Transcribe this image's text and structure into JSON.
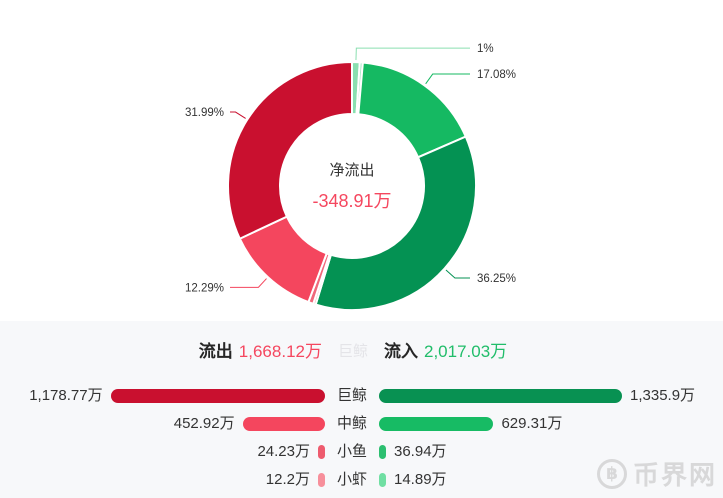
{
  "chart_data": [
    {
      "type": "pie",
      "shape": "donut",
      "center_label": {
        "title": "净流出",
        "value": "-348.91万",
        "value_color": "#f5475f"
      },
      "unit": "万",
      "legend_position": "none",
      "segments": [
        {
          "name": "小鱼-流入",
          "pct": 1.0,
          "label": "1%",
          "color": "#8adfb0",
          "labeled": true
        },
        {
          "name": "小虾-流入",
          "pct": 0.4,
          "label": "",
          "color": "#a6e8c6",
          "labeled": false
        },
        {
          "name": "中鲸-流入",
          "pct": 17.08,
          "label": "17.08%",
          "color": "#15b962",
          "labeled": true
        },
        {
          "name": "巨鲸-流入",
          "pct": 36.25,
          "label": "36.25%",
          "color": "#049253",
          "labeled": true
        },
        {
          "name": "小虾-流出",
          "pct": 0.33,
          "label": "",
          "color": "#f9a2ad",
          "labeled": false
        },
        {
          "name": "小鱼-流出",
          "pct": 0.66,
          "label": "",
          "color": "#f0677a",
          "labeled": false
        },
        {
          "name": "中鲸-流出",
          "pct": 12.29,
          "label": "12.29%",
          "color": "#f4465e",
          "labeled": true
        },
        {
          "name": "巨鲸-流出",
          "pct": 31.99,
          "label": "31.99%",
          "color": "#c9102f",
          "labeled": true
        }
      ]
    },
    {
      "type": "bar",
      "orientation": "horizontal-mirrored",
      "categories": [
        "巨鲸",
        "中鲸",
        "小鱼",
        "小虾"
      ],
      "max_value": 1335.9,
      "series": [
        {
          "name": "流出",
          "values": [
            1178.77,
            452.92,
            24.23,
            12.2
          ],
          "labels": [
            "1,178.77万",
            "452.92万",
            "24.23万",
            "12.2万"
          ],
          "colors": [
            "#c9102f",
            "#f4465e",
            "#ee5b6e",
            "#f78f9b"
          ]
        },
        {
          "name": "流入",
          "values": [
            1335.9,
            629.31,
            36.94,
            14.89
          ],
          "labels": [
            "1,335.9万",
            "629.31万",
            "36.94万",
            "14.89万"
          ],
          "colors": [
            "#089152",
            "#17bb64",
            "#2cbf70",
            "#70dfa3"
          ]
        }
      ]
    }
  ],
  "summary": {
    "outflow_label": "流出",
    "outflow_value": "1,668.12万",
    "outflow_color": "#f5475f",
    "hovered_item": "巨鲸",
    "hovered_color": "#e4e4e8",
    "inflow_label": "流入",
    "inflow_value": "2,017.03万",
    "inflow_color": "#21bd6a"
  },
  "watermark": {
    "symbol": "฿",
    "text": "币界网"
  }
}
